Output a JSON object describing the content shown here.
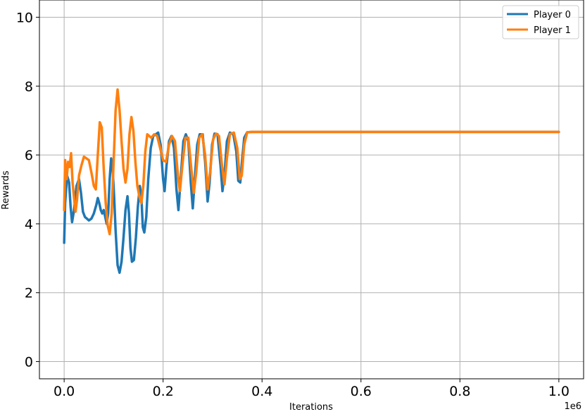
{
  "chart_data": {
    "type": "line",
    "title": "",
    "xlabel": "Iterations",
    "ylabel": "Rewards",
    "x_offset_label": "1e6",
    "xlim": [
      -0.05,
      1.05
    ],
    "ylim": [
      -0.5,
      10.5
    ],
    "xticks": [
      0.0,
      0.2,
      0.4,
      0.6,
      0.8,
      1.0
    ],
    "xtick_labels": [
      "0.0",
      "0.2",
      "0.4",
      "0.6",
      "0.8",
      "1.0"
    ],
    "yticks": [
      0,
      2,
      4,
      6,
      8,
      10
    ],
    "ytick_labels": [
      "0",
      "2",
      "4",
      "6",
      "8",
      "10"
    ],
    "grid": true,
    "legend_position": "top-right",
    "series": [
      {
        "name": "Player 0",
        "color": "#1f77b4",
        "points": [
          [
            0.0,
            3.45
          ],
          [
            0.002,
            4.6
          ],
          [
            0.006,
            5.4
          ],
          [
            0.01,
            5.2
          ],
          [
            0.013,
            4.5
          ],
          [
            0.016,
            4.05
          ],
          [
            0.02,
            4.4
          ],
          [
            0.025,
            5.1
          ],
          [
            0.03,
            5.3
          ],
          [
            0.034,
            4.9
          ],
          [
            0.038,
            4.35
          ],
          [
            0.042,
            4.2
          ],
          [
            0.046,
            4.15
          ],
          [
            0.05,
            4.1
          ],
          [
            0.055,
            4.15
          ],
          [
            0.06,
            4.3
          ],
          [
            0.065,
            4.55
          ],
          [
            0.068,
            4.75
          ],
          [
            0.071,
            4.6
          ],
          [
            0.074,
            4.4
          ],
          [
            0.077,
            4.3
          ],
          [
            0.08,
            4.4
          ],
          [
            0.083,
            4.2
          ],
          [
            0.086,
            4.0
          ],
          [
            0.089,
            4.3
          ],
          [
            0.092,
            5.3
          ],
          [
            0.095,
            5.9
          ],
          [
            0.098,
            5.6
          ],
          [
            0.101,
            4.8
          ],
          [
            0.104,
            3.8
          ],
          [
            0.108,
            2.8
          ],
          [
            0.112,
            2.58
          ],
          [
            0.116,
            2.9
          ],
          [
            0.12,
            3.6
          ],
          [
            0.124,
            4.4
          ],
          [
            0.128,
            4.8
          ],
          [
            0.131,
            4.3
          ],
          [
            0.134,
            3.3
          ],
          [
            0.137,
            2.9
          ],
          [
            0.141,
            2.95
          ],
          [
            0.145,
            3.6
          ],
          [
            0.149,
            4.5
          ],
          [
            0.153,
            5.1
          ],
          [
            0.156,
            4.8
          ],
          [
            0.159,
            3.9
          ],
          [
            0.162,
            3.75
          ],
          [
            0.166,
            4.2
          ],
          [
            0.17,
            5.3
          ],
          [
            0.175,
            6.2
          ],
          [
            0.18,
            6.55
          ],
          [
            0.185,
            6.6
          ],
          [
            0.19,
            6.65
          ],
          [
            0.195,
            6.3
          ],
          [
            0.2,
            5.3
          ],
          [
            0.203,
            4.95
          ],
          [
            0.207,
            5.7
          ],
          [
            0.212,
            6.4
          ],
          [
            0.217,
            6.55
          ],
          [
            0.222,
            6.2
          ],
          [
            0.227,
            5.0
          ],
          [
            0.231,
            4.4
          ],
          [
            0.236,
            5.4
          ],
          [
            0.241,
            6.4
          ],
          [
            0.246,
            6.6
          ],
          [
            0.251,
            6.4
          ],
          [
            0.256,
            5.2
          ],
          [
            0.26,
            4.45
          ],
          [
            0.264,
            5.3
          ],
          [
            0.269,
            6.3
          ],
          [
            0.274,
            6.6
          ],
          [
            0.28,
            6.6
          ],
          [
            0.285,
            5.8
          ],
          [
            0.29,
            4.65
          ],
          [
            0.294,
            5.2
          ],
          [
            0.299,
            6.3
          ],
          [
            0.304,
            6.62
          ],
          [
            0.31,
            6.6
          ],
          [
            0.316,
            5.7
          ],
          [
            0.32,
            4.95
          ],
          [
            0.324,
            5.4
          ],
          [
            0.329,
            6.4
          ],
          [
            0.335,
            6.65
          ],
          [
            0.342,
            6.6
          ],
          [
            0.348,
            6.1
          ],
          [
            0.352,
            5.25
          ],
          [
            0.356,
            5.2
          ],
          [
            0.36,
            5.9
          ],
          [
            0.364,
            6.5
          ],
          [
            0.37,
            6.66
          ],
          [
            0.38,
            6.67
          ],
          [
            0.5,
            6.67
          ],
          [
            0.7,
            6.67
          ],
          [
            0.9,
            6.67
          ],
          [
            1.0,
            6.67
          ]
        ]
      },
      {
        "name": "Player 1",
        "color": "#ff7f0e",
        "points": [
          [
            0.0,
            4.4
          ],
          [
            0.002,
            5.85
          ],
          [
            0.005,
            5.3
          ],
          [
            0.008,
            5.8
          ],
          [
            0.011,
            5.65
          ],
          [
            0.014,
            6.05
          ],
          [
            0.017,
            5.2
          ],
          [
            0.02,
            4.75
          ],
          [
            0.023,
            4.35
          ],
          [
            0.026,
            4.7
          ],
          [
            0.03,
            5.4
          ],
          [
            0.035,
            5.7
          ],
          [
            0.04,
            5.95
          ],
          [
            0.045,
            5.9
          ],
          [
            0.05,
            5.85
          ],
          [
            0.055,
            5.5
          ],
          [
            0.06,
            5.1
          ],
          [
            0.064,
            5.0
          ],
          [
            0.068,
            6.0
          ],
          [
            0.072,
            6.95
          ],
          [
            0.076,
            6.8
          ],
          [
            0.08,
            5.6
          ],
          [
            0.084,
            4.6
          ],
          [
            0.088,
            3.95
          ],
          [
            0.092,
            3.7
          ],
          [
            0.096,
            4.3
          ],
          [
            0.1,
            5.8
          ],
          [
            0.104,
            7.3
          ],
          [
            0.108,
            7.9
          ],
          [
            0.112,
            7.3
          ],
          [
            0.116,
            6.4
          ],
          [
            0.12,
            5.6
          ],
          [
            0.124,
            5.2
          ],
          [
            0.128,
            5.6
          ],
          [
            0.132,
            6.6
          ],
          [
            0.136,
            7.1
          ],
          [
            0.14,
            6.7
          ],
          [
            0.144,
            5.8
          ],
          [
            0.148,
            5.1
          ],
          [
            0.152,
            4.8
          ],
          [
            0.156,
            4.6
          ],
          [
            0.16,
            5.1
          ],
          [
            0.164,
            6.1
          ],
          [
            0.168,
            6.6
          ],
          [
            0.172,
            6.55
          ],
          [
            0.176,
            6.5
          ],
          [
            0.182,
            6.6
          ],
          [
            0.188,
            6.55
          ],
          [
            0.194,
            6.2
          ],
          [
            0.2,
            5.85
          ],
          [
            0.206,
            5.8
          ],
          [
            0.212,
            6.3
          ],
          [
            0.218,
            6.55
          ],
          [
            0.224,
            6.4
          ],
          [
            0.23,
            5.4
          ],
          [
            0.234,
            4.95
          ],
          [
            0.239,
            5.7
          ],
          [
            0.245,
            6.5
          ],
          [
            0.251,
            6.5
          ],
          [
            0.257,
            5.6
          ],
          [
            0.262,
            4.9
          ],
          [
            0.267,
            5.5
          ],
          [
            0.273,
            6.5
          ],
          [
            0.279,
            6.6
          ],
          [
            0.285,
            6.0
          ],
          [
            0.29,
            5.0
          ],
          [
            0.295,
            5.5
          ],
          [
            0.301,
            6.45
          ],
          [
            0.307,
            6.62
          ],
          [
            0.313,
            6.55
          ],
          [
            0.319,
            5.7
          ],
          [
            0.324,
            5.15
          ],
          [
            0.329,
            5.9
          ],
          [
            0.335,
            6.6
          ],
          [
            0.343,
            6.65
          ],
          [
            0.35,
            6.2
          ],
          [
            0.355,
            5.3
          ],
          [
            0.359,
            5.4
          ],
          [
            0.364,
            6.3
          ],
          [
            0.37,
            6.66
          ],
          [
            0.38,
            6.67
          ],
          [
            0.5,
            6.67
          ],
          [
            0.7,
            6.67
          ],
          [
            0.9,
            6.67
          ],
          [
            1.0,
            6.67
          ]
        ]
      }
    ]
  }
}
